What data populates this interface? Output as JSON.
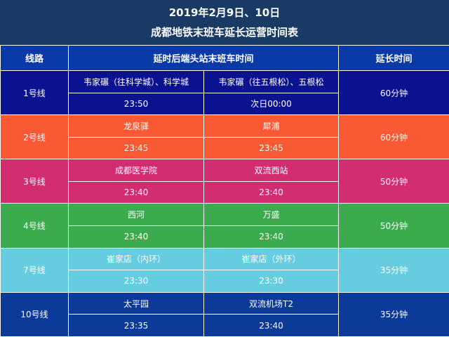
{
  "title": {
    "line1": "2019年2月9日、10日",
    "line2": "成都地铁末班车延长运营时间表"
  },
  "headers": {
    "line": "线路",
    "terminal": "延时后端头站末班车时间",
    "extension": "延长时间"
  },
  "rows": [
    {
      "line": "1号线",
      "dir1_station": "韦家碾（往科学城）、科学城",
      "dir1_time": "23:50",
      "dir2_station": "韦家碾（往五根松）、五根松",
      "dir2_time": "次日00:00",
      "extension": "60分钟",
      "color": "#0b1290"
    },
    {
      "line": "2号线",
      "dir1_station": "龙泉驿",
      "dir1_time": "23:45",
      "dir2_station": "犀浦",
      "dir2_time": "23:45",
      "extension": "60分钟",
      "color": "#fa5a33"
    },
    {
      "line": "3号线",
      "dir1_station": "成都医学院",
      "dir1_time": "23:40",
      "dir2_station": "双流西站",
      "dir2_time": "23:40",
      "extension": "50分钟",
      "color": "#d22d70"
    },
    {
      "line": "4号线",
      "dir1_station": "西河",
      "dir1_time": "23:40",
      "dir2_station": "万盛",
      "dir2_time": "23:40",
      "extension": "50分钟",
      "color": "#3cab4e"
    },
    {
      "line": "7号线",
      "dir1_station": "崔家店（内环）",
      "dir1_time": "23:30",
      "dir2_station": "崔家店（外环）",
      "dir2_time": "23:30",
      "extension": "35分钟",
      "color": "#66cce0"
    },
    {
      "line": "10号线",
      "dir1_station": "太平园",
      "dir1_time": "23:35",
      "dir2_station": "双流机场T2",
      "dir2_time": "23:40",
      "extension": "35分钟",
      "color": "#0b3a99"
    }
  ]
}
